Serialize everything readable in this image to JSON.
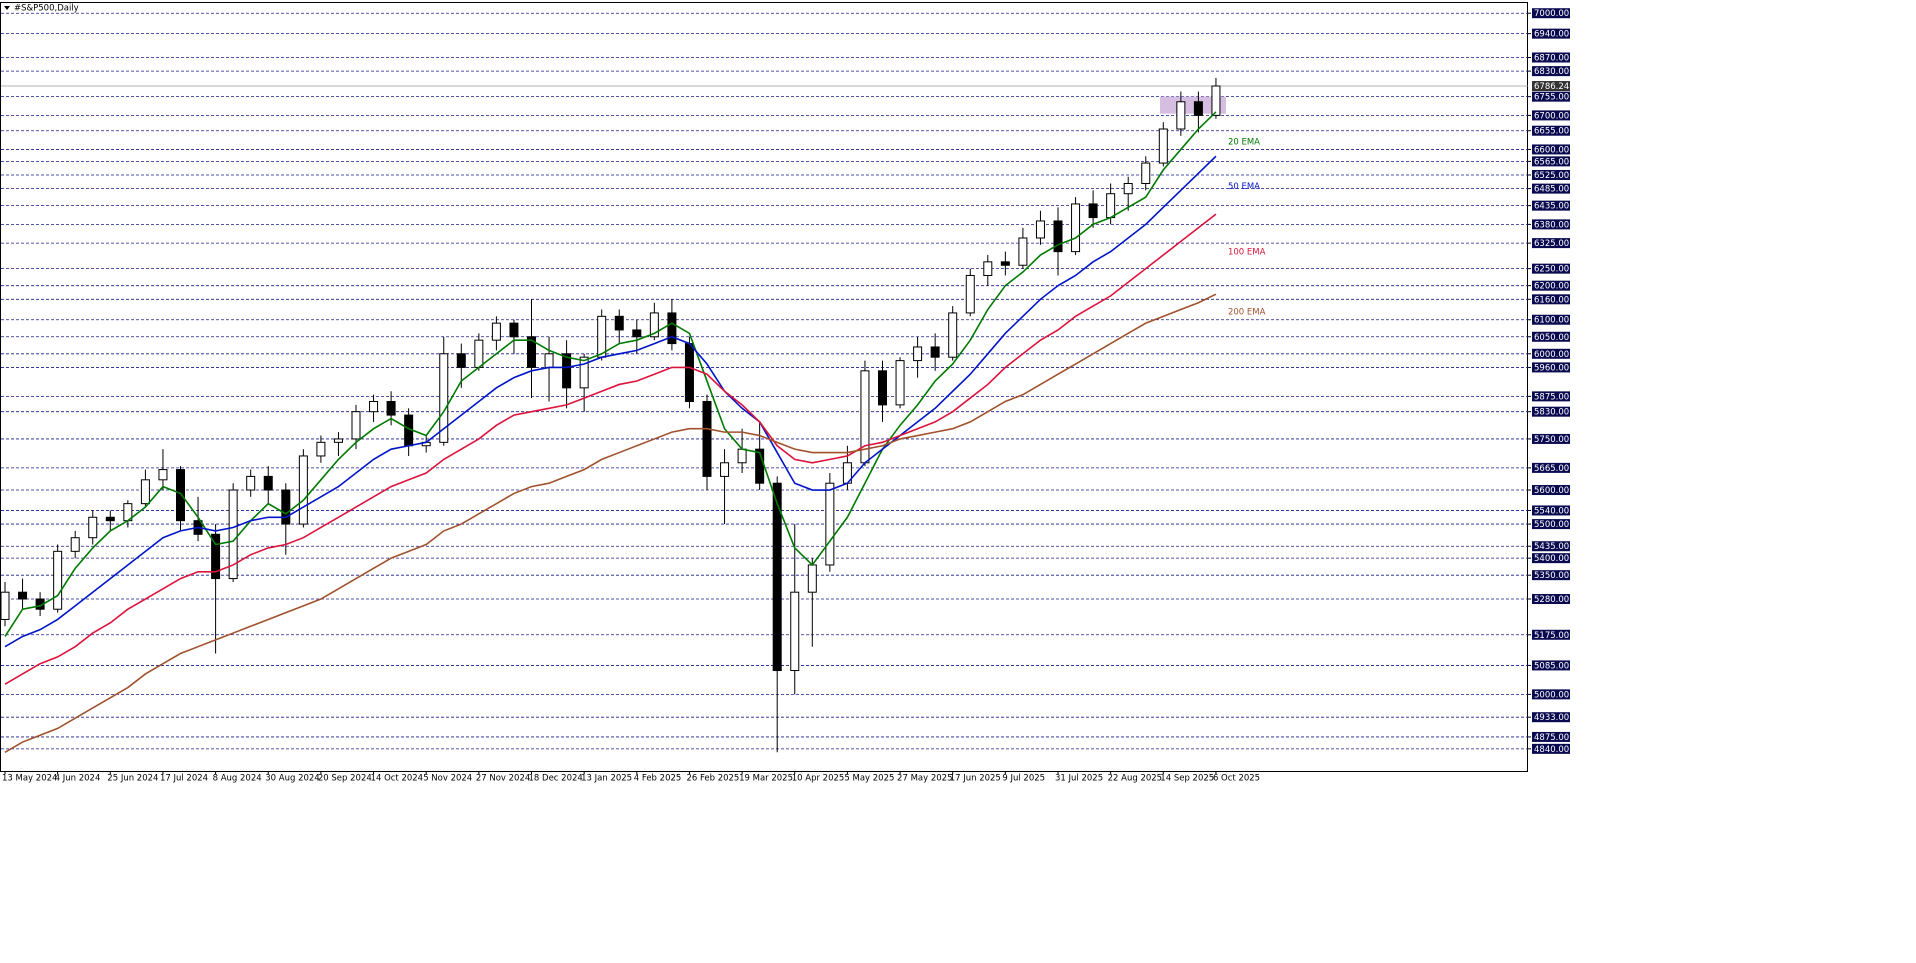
{
  "chart_data": {
    "type": "candlestick",
    "title": "#S&P500,Daily",
    "categories": [
      "13 May 2024",
      null,
      null,
      "4 Jun 2024",
      null,
      null,
      "25 Jun 2024",
      null,
      null,
      "17 Jul 2024",
      null,
      null,
      "8 Aug 2024",
      null,
      null,
      "30 Aug 2024",
      null,
      null,
      "20 Sep 2024",
      null,
      null,
      "14 Oct 2024",
      null,
      null,
      "5 Nov 2024",
      null,
      null,
      "27 Nov 2024",
      null,
      null,
      "18 Dec 2024",
      null,
      null,
      "13 Jan 2025",
      null,
      null,
      "4 Feb 2025",
      null,
      null,
      "26 Feb 2025",
      null,
      null,
      "19 Mar 2025",
      null,
      null,
      "10 Apr 2025",
      null,
      null,
      "5 May 2025",
      null,
      null,
      "27 May 2025",
      null,
      null,
      "17 Jun 2025",
      null,
      null,
      "9 Jul 2025",
      null,
      null,
      "31 Jul 2025",
      null,
      null,
      "22 Aug 2025",
      null,
      null,
      "14 Sep 2025",
      null,
      null,
      "6 Oct 2025"
    ],
    "open": [
      5220,
      5300,
      5280,
      5250,
      5420,
      5460,
      5520,
      5510,
      5560,
      5630,
      5660,
      5510,
      5470,
      5340,
      5600,
      5640,
      5600,
      5500,
      5700,
      5740,
      5750,
      5830,
      5860,
      5820,
      5730,
      5740,
      6000,
      5960,
      6040,
      6090,
      6050,
      5960,
      6000,
      5900,
      5990,
      6110,
      6070,
      6050,
      6120,
      6030,
      5860,
      5640,
      5680,
      5720,
      5620,
      5070,
      5300,
      5380,
      5620,
      5680,
      5950,
      5850,
      5980,
      6020,
      5990,
      6120,
      6230,
      6270,
      6260,
      6340,
      6390,
      6300,
      6440,
      6400,
      6470,
      6500,
      6560,
      6660,
      6740,
      6700
    ],
    "high": [
      5330,
      5340,
      5300,
      5440,
      5480,
      5540,
      5540,
      5570,
      5660,
      5720,
      5670,
      5580,
      5500,
      5620,
      5660,
      5670,
      5620,
      5720,
      5760,
      5770,
      5850,
      5880,
      5890,
      5840,
      5760,
      6050,
      6030,
      6060,
      6110,
      6100,
      6160,
      6050,
      6040,
      6000,
      6130,
      6130,
      6100,
      6150,
      6160,
      6050,
      5880,
      5720,
      5780,
      5800,
      5640,
      5500,
      5400,
      5650,
      5730,
      5980,
      5980,
      5990,
      6050,
      6060,
      6140,
      6250,
      6290,
      6300,
      6370,
      6420,
      6430,
      6460,
      6480,
      6500,
      6520,
      6580,
      6680,
      6770,
      6770,
      6810
    ],
    "low": [
      5200,
      5250,
      5230,
      5240,
      5400,
      5440,
      5480,
      5490,
      5550,
      5600,
      5480,
      5450,
      5120,
      5330,
      5580,
      5560,
      5410,
      5490,
      5680,
      5700,
      5720,
      5800,
      5790,
      5700,
      5710,
      5730,
      5900,
      5950,
      6010,
      6000,
      5870,
      5860,
      5840,
      5830,
      5980,
      6030,
      6000,
      6040,
      6010,
      5840,
      5600,
      5500,
      5650,
      5600,
      4830,
      5000,
      5140,
      5360,
      5600,
      5670,
      5800,
      5840,
      5930,
      5950,
      5980,
      6110,
      6200,
      6230,
      6250,
      6320,
      6230,
      6290,
      6370,
      6380,
      6420,
      6480,
      6550,
      6640,
      6650,
      6690
    ],
    "close": [
      5300,
      5280,
      5250,
      5420,
      5460,
      5520,
      5510,
      5560,
      5630,
      5660,
      5510,
      5470,
      5340,
      5600,
      5640,
      5600,
      5500,
      5700,
      5740,
      5750,
      5830,
      5860,
      5820,
      5730,
      5740,
      6000,
      5960,
      6040,
      6090,
      6050,
      5960,
      6000,
      5900,
      5990,
      6110,
      6070,
      6050,
      6120,
      6030,
      5860,
      5640,
      5680,
      5720,
      5620,
      5070,
      5300,
      5380,
      5620,
      5680,
      5950,
      5850,
      5980,
      6020,
      5990,
      6120,
      6230,
      6270,
      6260,
      6340,
      6390,
      6300,
      6440,
      6400,
      6470,
      6500,
      6560,
      6660,
      6740,
      6700,
      6786.24
    ],
    "series": [
      {
        "name": "20 EMA",
        "color": "#007a00",
        "values": [
          5170,
          5250,
          5260,
          5290,
          5370,
          5430,
          5480,
          5510,
          5550,
          5610,
          5590,
          5520,
          5440,
          5450,
          5510,
          5560,
          5530,
          5570,
          5630,
          5690,
          5740,
          5780,
          5810,
          5780,
          5760,
          5830,
          5920,
          5960,
          6000,
          6040,
          6040,
          6010,
          5990,
          5980,
          6000,
          6030,
          6040,
          6060,
          6090,
          6060,
          5920,
          5780,
          5720,
          5710,
          5560,
          5430,
          5380,
          5450,
          5520,
          5620,
          5720,
          5790,
          5850,
          5920,
          5970,
          6040,
          6130,
          6200,
          6240,
          6290,
          6320,
          6340,
          6380,
          6400,
          6430,
          6460,
          6540,
          6600,
          6660,
          6710
        ]
      },
      {
        "name": "50 EMA",
        "color": "#0015c8",
        "values": [
          5140,
          5170,
          5190,
          5220,
          5260,
          5300,
          5340,
          5380,
          5420,
          5460,
          5480,
          5490,
          5480,
          5490,
          5510,
          5520,
          5520,
          5550,
          5580,
          5610,
          5650,
          5690,
          5720,
          5730,
          5740,
          5780,
          5820,
          5860,
          5900,
          5930,
          5950,
          5960,
          5960,
          5970,
          5990,
          6000,
          6010,
          6030,
          6050,
          6030,
          5970,
          5890,
          5840,
          5800,
          5710,
          5620,
          5600,
          5600,
          5620,
          5680,
          5720,
          5760,
          5800,
          5840,
          5890,
          5940,
          6000,
          6060,
          6110,
          6160,
          6200,
          6230,
          6270,
          6300,
          6340,
          6380,
          6430,
          6480,
          6530,
          6580
        ]
      },
      {
        "name": "100 EMA",
        "color": "#dc143c",
        "values": [
          5030,
          5060,
          5090,
          5110,
          5140,
          5180,
          5210,
          5250,
          5280,
          5310,
          5340,
          5360,
          5360,
          5380,
          5410,
          5430,
          5440,
          5460,
          5490,
          5520,
          5550,
          5580,
          5610,
          5630,
          5650,
          5690,
          5720,
          5750,
          5790,
          5820,
          5830,
          5840,
          5850,
          5870,
          5890,
          5910,
          5920,
          5940,
          5960,
          5960,
          5940,
          5890,
          5850,
          5800,
          5730,
          5690,
          5680,
          5690,
          5700,
          5730,
          5740,
          5760,
          5780,
          5800,
          5830,
          5870,
          5910,
          5960,
          6000,
          6040,
          6070,
          6110,
          6140,
          6170,
          6210,
          6250,
          6290,
          6330,
          6370,
          6410
        ]
      },
      {
        "name": "200 EMA",
        "color": "#a0522d",
        "values": [
          4830,
          4860,
          4880,
          4900,
          4930,
          4960,
          4990,
          5020,
          5060,
          5090,
          5120,
          5140,
          5160,
          5180,
          5200,
          5220,
          5240,
          5260,
          5280,
          5310,
          5340,
          5370,
          5400,
          5420,
          5440,
          5480,
          5500,
          5530,
          5560,
          5590,
          5610,
          5620,
          5640,
          5660,
          5690,
          5710,
          5730,
          5750,
          5770,
          5780,
          5780,
          5770,
          5770,
          5760,
          5740,
          5720,
          5710,
          5710,
          5710,
          5720,
          5730,
          5750,
          5760,
          5770,
          5780,
          5800,
          5830,
          5860,
          5880,
          5910,
          5940,
          5970,
          6000,
          6030,
          6060,
          6090,
          6110,
          6130,
          6150,
          6175
        ]
      }
    ],
    "last_price": 6786.24,
    "zone": [
      6705,
      6755
    ],
    "ylim": [
      4775,
      7030
    ],
    "yticks": [
      {
        "value": 7000,
        "label": "7000.00"
      },
      {
        "value": 6940,
        "label": "6940.00"
      },
      {
        "value": 6870,
        "label": "6870.00"
      },
      {
        "value": 6830,
        "label": "6830.00"
      },
      {
        "value": 6755,
        "label": "6755.00"
      },
      {
        "value": 6700,
        "label": "6700.00"
      },
      {
        "value": 6655,
        "label": "6655.00"
      },
      {
        "value": 6600,
        "label": "6600.00"
      },
      {
        "value": 6565,
        "label": "6565.00"
      },
      {
        "value": 6525,
        "label": "6525.00"
      },
      {
        "value": 6485,
        "label": "6485.00"
      },
      {
        "value": 6435,
        "label": "6435.00"
      },
      {
        "value": 6380,
        "label": "6380.00"
      },
      {
        "value": 6325,
        "label": "6325.00"
      },
      {
        "value": 6250,
        "label": "6250.00"
      },
      {
        "value": 6200,
        "label": "6200.00"
      },
      {
        "value": 6160,
        "label": "6160.00"
      },
      {
        "value": 6100,
        "label": "6100.00"
      },
      {
        "value": 6050,
        "label": "6050.00"
      },
      {
        "value": 6000,
        "label": "6000.00"
      },
      {
        "value": 5960,
        "label": "5960.00"
      },
      {
        "value": 5875,
        "label": "5875.00"
      },
      {
        "value": 5830,
        "label": "5830.00"
      },
      {
        "value": 5750,
        "label": "5750.00"
      },
      {
        "value": 5665,
        "label": "5665.00"
      },
      {
        "value": 5600,
        "label": "5600.00"
      },
      {
        "value": 5540,
        "label": "5540.00"
      },
      {
        "value": 5500,
        "label": "5500.00"
      },
      {
        "value": 5435,
        "label": "5435.00"
      },
      {
        "value": 5400,
        "label": "5400.00"
      },
      {
        "value": 5350,
        "label": "5350.00"
      },
      {
        "value": 5280,
        "label": "5280.00"
      },
      {
        "value": 5175,
        "label": "5175.00"
      },
      {
        "value": 5085,
        "label": "5085.00"
      },
      {
        "value": 5000,
        "label": "5000.00"
      },
      {
        "value": 4933,
        "label": "4933.00"
      },
      {
        "value": 4875,
        "label": "4875.00"
      },
      {
        "value": 4840,
        "label": "4840.00"
      }
    ],
    "grid": true
  }
}
